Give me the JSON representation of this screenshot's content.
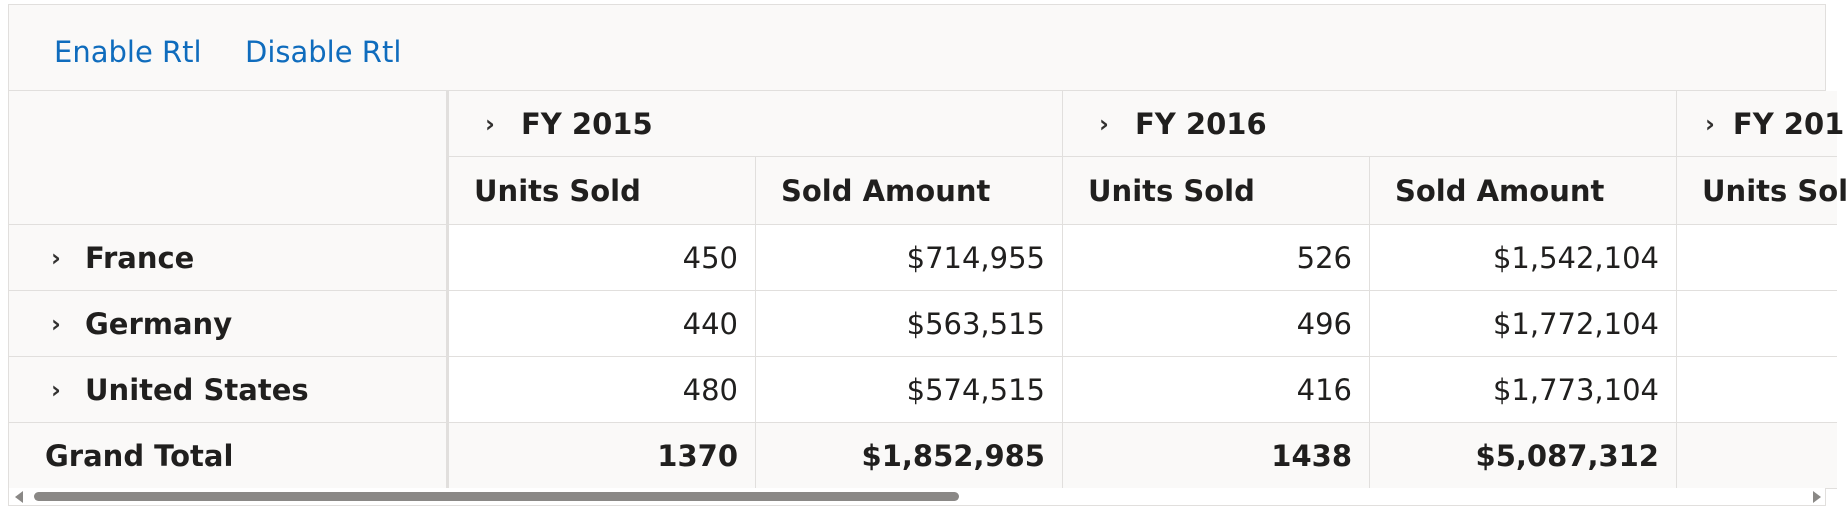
{
  "toolbar": {
    "enable_label": "Enable Rtl",
    "disable_label": "Disable Rtl"
  },
  "pivot": {
    "years": [
      {
        "label": "FY 2015"
      },
      {
        "label": "FY 2016"
      },
      {
        "label": "FY 201"
      }
    ],
    "measures": [
      "Units Sold",
      "Sold Amount",
      "Units Sold",
      "Sold Amount",
      "Units Sol"
    ],
    "rows": [
      {
        "label": "France",
        "values": [
          "450",
          "$714,955",
          "526",
          "$1,542,104"
        ]
      },
      {
        "label": "Germany",
        "values": [
          "440",
          "$563,515",
          "496",
          "$1,772,104"
        ]
      },
      {
        "label": "United States",
        "values": [
          "480",
          "$574,515",
          "416",
          "$1,773,104"
        ]
      }
    ],
    "grand_total": {
      "label": "Grand Total",
      "values": [
        "1370",
        "$1,852,985",
        "1438",
        "$5,087,312"
      ]
    }
  }
}
